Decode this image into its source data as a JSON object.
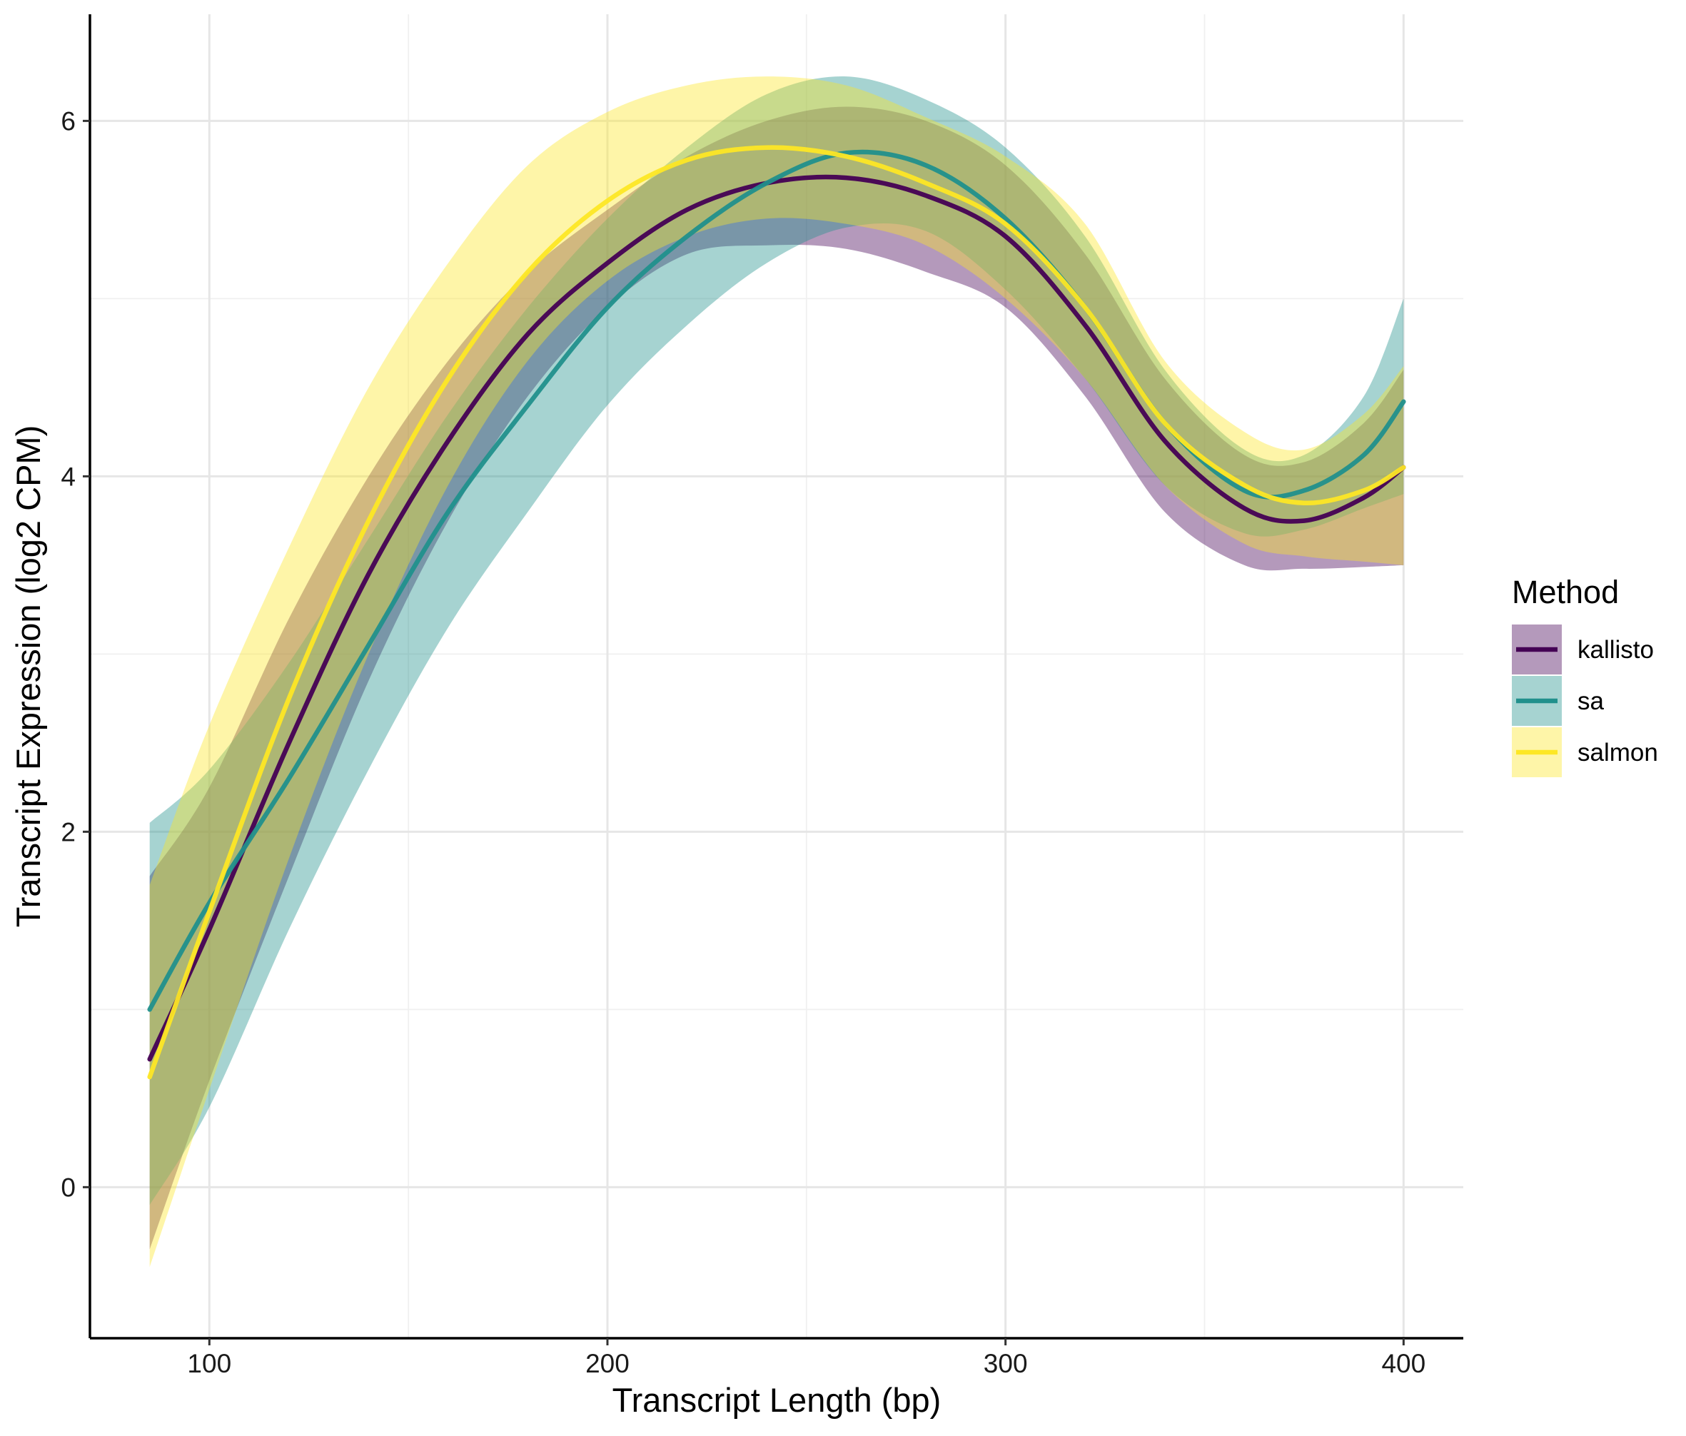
{
  "chart_data": {
    "type": "line",
    "subtype": "smoothed lines with confidence ribbons",
    "xlabel": "Transcript Length (bp)",
    "ylabel": "Transcript Expression (log2 CPM)",
    "xlim": [
      70,
      415
    ],
    "ylim": [
      -0.85,
      6.6
    ],
    "x_ticks": [
      100,
      200,
      300,
      400
    ],
    "y_ticks": [
      0,
      2,
      4,
      6
    ],
    "x_tick_labels": [
      "100",
      "200",
      "300",
      "400"
    ],
    "y_tick_labels": [
      "0",
      "2",
      "4",
      "6"
    ],
    "grid": true,
    "legend": {
      "title": "Method",
      "position": "right"
    },
    "x": [
      85,
      100,
      120,
      140,
      160,
      180,
      200,
      220,
      240,
      260,
      280,
      300,
      320,
      340,
      360,
      375,
      390,
      400
    ],
    "series": [
      {
        "name": "kallisto",
        "color": "#440154",
        "values": [
          0.72,
          1.45,
          2.5,
          3.45,
          4.2,
          4.8,
          5.2,
          5.5,
          5.65,
          5.68,
          5.58,
          5.35,
          4.85,
          4.2,
          3.82,
          3.75,
          3.88,
          4.05
        ],
        "lower": [
          -0.35,
          0.6,
          1.75,
          2.85,
          3.75,
          4.45,
          4.95,
          5.25,
          5.3,
          5.28,
          5.15,
          4.95,
          4.45,
          3.8,
          3.5,
          3.48,
          3.49,
          3.5
        ],
        "upper": [
          1.75,
          2.25,
          3.2,
          4.0,
          4.65,
          5.15,
          5.5,
          5.8,
          6.0,
          6.08,
          6.0,
          5.75,
          5.25,
          4.55,
          4.12,
          4.08,
          4.3,
          4.6
        ]
      },
      {
        "name": "sa",
        "color": "#21908C",
        "values": [
          1.0,
          1.6,
          2.3,
          3.05,
          3.8,
          4.4,
          4.95,
          5.35,
          5.65,
          5.82,
          5.75,
          5.45,
          4.95,
          4.3,
          3.92,
          3.92,
          4.12,
          4.42
        ],
        "lower": [
          -0.1,
          0.45,
          1.45,
          2.35,
          3.15,
          3.8,
          4.4,
          4.85,
          5.2,
          5.4,
          5.38,
          5.05,
          4.55,
          3.95,
          3.68,
          3.7,
          3.82,
          3.9
        ],
        "upper": [
          2.05,
          2.35,
          2.95,
          3.65,
          4.35,
          4.95,
          5.45,
          5.85,
          6.15,
          6.25,
          6.12,
          5.85,
          5.35,
          4.6,
          4.15,
          4.12,
          4.45,
          5.0
        ]
      },
      {
        "name": "salmon",
        "color": "#FDE725",
        "values": [
          0.62,
          1.55,
          2.75,
          3.75,
          4.55,
          5.15,
          5.55,
          5.78,
          5.85,
          5.8,
          5.65,
          5.42,
          4.95,
          4.3,
          3.95,
          3.85,
          3.92,
          4.05
        ],
        "lower": [
          -0.45,
          0.55,
          1.85,
          3.0,
          3.95,
          4.65,
          5.1,
          5.35,
          5.45,
          5.42,
          5.3,
          5.0,
          4.55,
          3.95,
          3.62,
          3.55,
          3.52,
          3.5
        ],
        "upper": [
          1.7,
          2.6,
          3.6,
          4.5,
          5.2,
          5.75,
          6.05,
          6.2,
          6.25,
          6.2,
          6.02,
          5.8,
          5.42,
          4.65,
          4.25,
          4.15,
          4.35,
          4.62
        ]
      }
    ]
  }
}
